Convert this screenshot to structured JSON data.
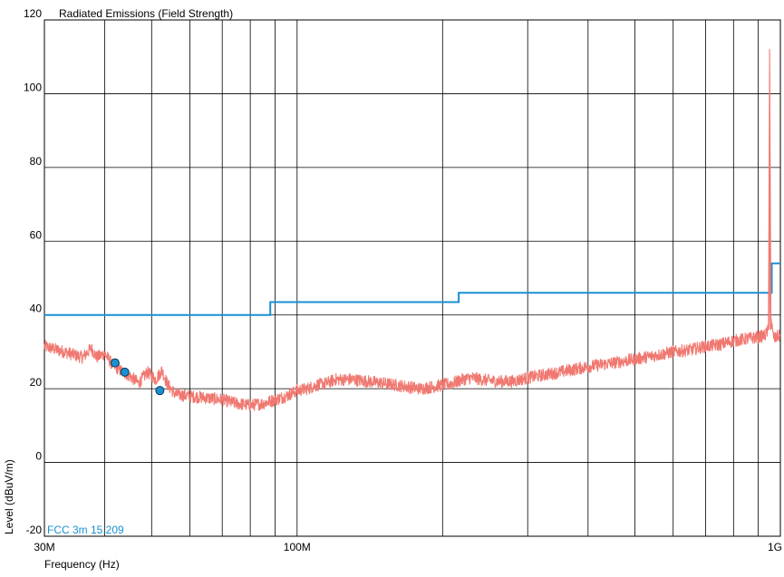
{
  "chart_data": {
    "type": "line",
    "title": "Radiated Emissions (Field Strength)",
    "xlabel": "Frequency (Hz)",
    "ylabel": "Level (dBuV/m)",
    "x_scale": "log",
    "xlim": [
      30000000,
      1000000000
    ],
    "ylim": [
      -20,
      120
    ],
    "grid": true,
    "y_ticks": [
      "120",
      "100",
      "80",
      "60",
      "40",
      "20",
      "0",
      "-20"
    ],
    "x_tick_labels": [
      {
        "value": 30000000,
        "label": "30M"
      },
      {
        "value": 100000000,
        "label": "100M"
      },
      {
        "value": 1000000000,
        "label": "1G"
      }
    ],
    "x_minor_grid": [
      40000000,
      50000000,
      60000000,
      70000000,
      80000000,
      90000000,
      200000000,
      300000000,
      400000000,
      500000000,
      600000000,
      700000000,
      800000000,
      900000000
    ],
    "colors": {
      "measurement": "#f07870",
      "limit": "#1a90d0",
      "marker_fill": "#1a90d0",
      "marker_stroke": "#0a3a5a"
    },
    "series": [
      {
        "name": "FCC 3m 15.209",
        "kind": "limit-step",
        "points": [
          [
            30000000,
            40
          ],
          [
            88000000,
            40
          ],
          [
            88000000,
            43.5
          ],
          [
            216000000,
            43.5
          ],
          [
            216000000,
            46
          ],
          [
            960000000,
            46
          ],
          [
            960000000,
            54
          ],
          [
            1000000000,
            54
          ]
        ]
      },
      {
        "kind": "measurement",
        "points": [
          [
            30000000,
            31.5
          ],
          [
            33000000,
            30
          ],
          [
            36000000,
            28.5
          ],
          [
            37500000,
            31
          ],
          [
            38500000,
            28.5
          ],
          [
            40000000,
            29.5
          ],
          [
            41500000,
            26.5
          ],
          [
            43000000,
            25
          ],
          [
            45000000,
            23.5
          ],
          [
            47000000,
            21.5
          ],
          [
            49000000,
            24.5
          ],
          [
            51000000,
            22.5
          ],
          [
            52500000,
            25
          ],
          [
            54000000,
            21
          ],
          [
            56000000,
            18.5
          ],
          [
            60000000,
            18
          ],
          [
            65000000,
            17.5
          ],
          [
            70000000,
            17
          ],
          [
            75000000,
            16
          ],
          [
            80000000,
            15.5
          ],
          [
            85000000,
            16
          ],
          [
            90000000,
            17
          ],
          [
            95000000,
            18
          ],
          [
            100000000,
            19.5
          ],
          [
            105000000,
            20
          ],
          [
            110000000,
            21
          ],
          [
            115000000,
            21.5
          ],
          [
            120000000,
            22.5
          ],
          [
            130000000,
            22.5
          ],
          [
            140000000,
            22
          ],
          [
            150000000,
            21.5
          ],
          [
            160000000,
            21
          ],
          [
            170000000,
            20.5
          ],
          [
            180000000,
            20
          ],
          [
            190000000,
            20.5
          ],
          [
            200000000,
            21
          ],
          [
            210000000,
            21.5
          ],
          [
            220000000,
            22.5
          ],
          [
            230000000,
            23
          ],
          [
            240000000,
            22.5
          ],
          [
            260000000,
            22
          ],
          [
            280000000,
            22
          ],
          [
            300000000,
            23
          ],
          [
            350000000,
            24.5
          ],
          [
            400000000,
            26
          ],
          [
            450000000,
            27
          ],
          [
            500000000,
            28
          ],
          [
            550000000,
            29
          ],
          [
            600000000,
            30
          ],
          [
            650000000,
            30.5
          ],
          [
            700000000,
            31.5
          ],
          [
            750000000,
            32
          ],
          [
            800000000,
            33
          ],
          [
            850000000,
            33.5
          ],
          [
            900000000,
            34
          ],
          [
            930000000,
            34.5
          ],
          [
            945000000,
            36
          ],
          [
            950000000,
            112
          ],
          [
            955000000,
            40
          ],
          [
            965000000,
            34.5
          ],
          [
            975000000,
            33.5
          ],
          [
            990000000,
            34.5
          ],
          [
            1000000000,
            34
          ]
        ]
      }
    ],
    "markers": [
      {
        "x": 42000000,
        "y": 27
      },
      {
        "x": 44000000,
        "y": 24.5
      },
      {
        "x": 52000000,
        "y": 19.5
      }
    ]
  }
}
